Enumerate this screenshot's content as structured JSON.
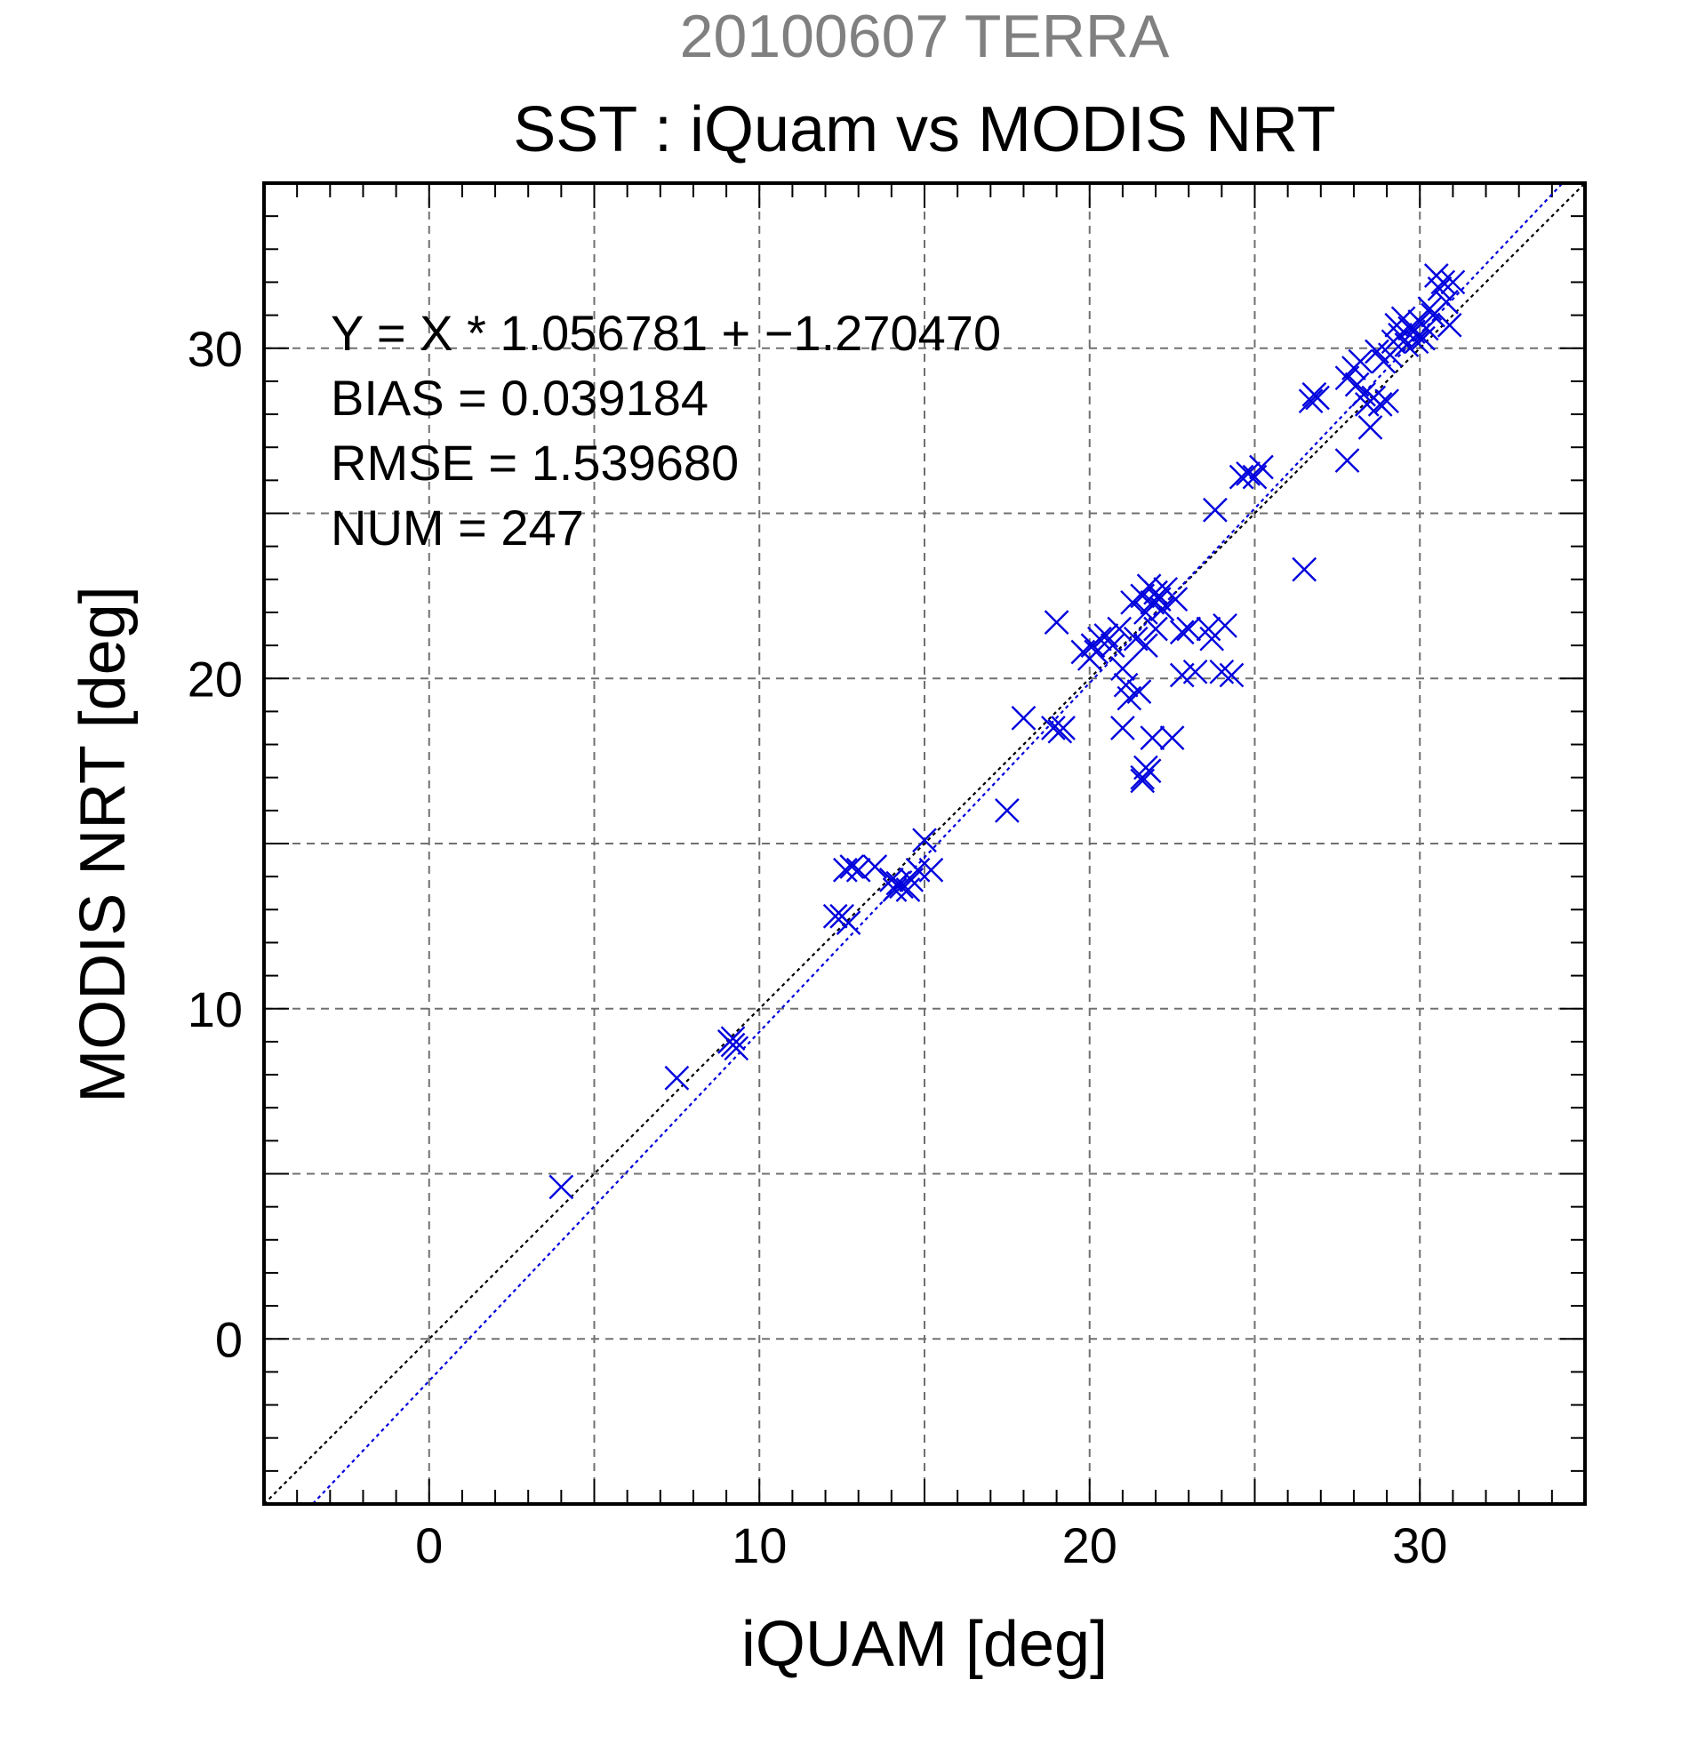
{
  "chart_data": {
    "type": "scatter",
    "suptitle": "20100607 TERRA",
    "title": "SST : iQuam vs MODIS NRT",
    "xlabel": "iQUAM [deg]",
    "ylabel": "MODIS NRT [deg]",
    "xlim": [
      -5,
      35
    ],
    "ylim": [
      -5,
      35
    ],
    "xticks": [
      0,
      10,
      20,
      30
    ],
    "yticks": [
      0,
      10,
      20,
      30
    ],
    "grid": true,
    "colors": {
      "suptitle": "#808080",
      "points": "#0000dd",
      "fit_line": "#0000dd",
      "identity_line": "#000000",
      "grid": "#707070"
    },
    "annotations": [
      "Y = X * 1.056781 + −1.270470",
      "BIAS = 0.039184",
      "RMSE = 1.539680",
      "NUM = 247"
    ],
    "lines": [
      {
        "name": "1:1",
        "slope": 1.0,
        "intercept": 0.0
      },
      {
        "name": "fit",
        "slope": 1.056781,
        "intercept": -1.27047
      }
    ],
    "series": [
      {
        "marker": "x",
        "points": [
          [
            4.0,
            4.6
          ],
          [
            7.5,
            7.9
          ],
          [
            9.1,
            9.0
          ],
          [
            9.2,
            8.9
          ],
          [
            9.3,
            8.8
          ],
          [
            9.2,
            9.1
          ],
          [
            12.3,
            12.8
          ],
          [
            12.5,
            12.8
          ],
          [
            12.7,
            12.6
          ],
          [
            12.6,
            14.2
          ],
          [
            12.8,
            14.3
          ],
          [
            13.0,
            14.2
          ],
          [
            13.5,
            14.3
          ],
          [
            14.0,
            13.9
          ],
          [
            14.1,
            13.6
          ],
          [
            14.3,
            13.7
          ],
          [
            14.5,
            13.6
          ],
          [
            14.2,
            13.8
          ],
          [
            14.6,
            13.9
          ],
          [
            14.8,
            14.2
          ],
          [
            15.0,
            15.1
          ],
          [
            15.2,
            14.2
          ],
          [
            17.5,
            16.0
          ],
          [
            18.0,
            18.8
          ],
          [
            18.9,
            18.5
          ],
          [
            19.1,
            18.4
          ],
          [
            19.2,
            18.5
          ],
          [
            19.0,
            21.7
          ],
          [
            19.8,
            20.8
          ],
          [
            20.0,
            20.6
          ],
          [
            20.1,
            21.0
          ],
          [
            20.3,
            21.2
          ],
          [
            20.2,
            20.8
          ],
          [
            20.5,
            21.3
          ],
          [
            20.7,
            21.0
          ],
          [
            20.9,
            21.5
          ],
          [
            21.0,
            20.3
          ],
          [
            21.1,
            19.8
          ],
          [
            21.0,
            18.5
          ],
          [
            21.2,
            19.4
          ],
          [
            21.3,
            22.3
          ],
          [
            21.4,
            21.2
          ],
          [
            21.5,
            19.6
          ],
          [
            21.6,
            22.5
          ],
          [
            21.7,
            22.0
          ],
          [
            21.8,
            22.8
          ],
          [
            21.9,
            22.3
          ],
          [
            22.0,
            21.5
          ],
          [
            21.6,
            17.0
          ],
          [
            21.7,
            17.3
          ],
          [
            21.8,
            17.2
          ],
          [
            21.9,
            18.2
          ],
          [
            21.6,
            16.9
          ],
          [
            21.7,
            21.0
          ],
          [
            22.0,
            22.6
          ],
          [
            22.1,
            22.4
          ],
          [
            22.2,
            22.1
          ],
          [
            22.3,
            22.7
          ],
          [
            22.5,
            18.2
          ],
          [
            22.6,
            22.4
          ],
          [
            22.8,
            21.4
          ],
          [
            22.8,
            20.1
          ],
          [
            23.0,
            21.5
          ],
          [
            23.2,
            20.2
          ],
          [
            23.6,
            21.5
          ],
          [
            23.7,
            21.2
          ],
          [
            23.8,
            25.1
          ],
          [
            24.0,
            20.2
          ],
          [
            24.1,
            21.6
          ],
          [
            24.3,
            20.1
          ],
          [
            24.6,
            26.1
          ],
          [
            24.8,
            26.2
          ],
          [
            25.0,
            26.1
          ],
          [
            25.2,
            26.4
          ],
          [
            26.5,
            23.3
          ],
          [
            26.7,
            28.4
          ],
          [
            26.8,
            28.6
          ],
          [
            26.9,
            28.5
          ],
          [
            27.8,
            26.6
          ],
          [
            27.8,
            29.1
          ],
          [
            28.0,
            29.4
          ],
          [
            28.1,
            28.9
          ],
          [
            28.2,
            29.6
          ],
          [
            28.3,
            28.6
          ],
          [
            28.4,
            28.3
          ],
          [
            28.5,
            27.6
          ],
          [
            28.6,
            28.5
          ],
          [
            28.7,
            29.9
          ],
          [
            28.8,
            28.3
          ],
          [
            28.9,
            29.6
          ],
          [
            29.0,
            28.4
          ],
          [
            29.1,
            29.8
          ],
          [
            29.2,
            30.2
          ],
          [
            29.3,
            30.7
          ],
          [
            29.4,
            30.4
          ],
          [
            29.5,
            30.9
          ],
          [
            29.6,
            30.1
          ],
          [
            29.7,
            30.6
          ],
          [
            29.8,
            30.5
          ],
          [
            29.9,
            30.2
          ],
          [
            30.0,
            30.8
          ],
          [
            30.1,
            30.3
          ],
          [
            30.2,
            30.6
          ],
          [
            30.3,
            31.2
          ],
          [
            30.4,
            31.0
          ],
          [
            30.5,
            32.2
          ],
          [
            30.6,
            31.8
          ],
          [
            30.7,
            32.0
          ],
          [
            30.8,
            31.4
          ],
          [
            31.0,
            32.0
          ],
          [
            30.9,
            30.7
          ]
        ]
      }
    ]
  }
}
